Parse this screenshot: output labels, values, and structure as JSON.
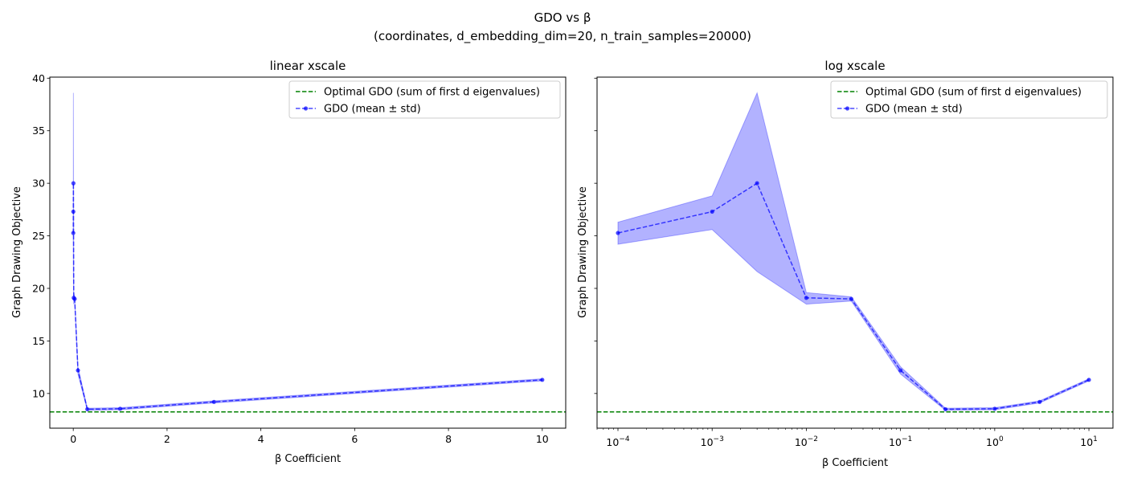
{
  "chart_data": [
    {
      "type": "line",
      "panel": "left",
      "suptitle": "GDO vs β",
      "subtitle": "(coordinates, d_embedding_dim=20, n_train_samples=20000)",
      "title": "linear xscale",
      "xlabel": "β Coefficient",
      "ylabel": "Graph Drawing Objective",
      "xscale": "linear",
      "xlim": [
        -0.5,
        10.5
      ],
      "ylim": [
        6.7,
        40.1
      ],
      "xticks": [
        0,
        2,
        4,
        6,
        8,
        10
      ],
      "xtick_labels": [
        "0",
        "2",
        "4",
        "6",
        "8",
        "10"
      ],
      "yticks": [
        10,
        15,
        20,
        25,
        30,
        35,
        40
      ],
      "ytick_labels": [
        "10",
        "15",
        "20",
        "25",
        "30",
        "35",
        "40"
      ],
      "grid": false,
      "legend_position": "top-right",
      "legend": [
        {
          "label": "Optimal GDO (sum of first d eigenvalues)",
          "style": "dashed",
          "color": "#008000"
        },
        {
          "label": "GDO (mean ± std)",
          "style": "dashed-marker",
          "color": "#0000ff"
        }
      ],
      "x": [
        0.0001,
        0.001,
        0.003,
        0.01,
        0.03,
        0.1,
        0.3,
        1,
        3,
        10
      ],
      "series": [
        {
          "name": "GDO (mean ± std)",
          "color": "#0000ff",
          "values": [
            25.27,
            27.3,
            30.0,
            19.1,
            19.0,
            12.2,
            8.5,
            8.55,
            9.2,
            11.3
          ],
          "std_upper": [
            26.3,
            28.8,
            38.6,
            19.6,
            19.2,
            12.55,
            8.6,
            8.65,
            9.3,
            11.4
          ],
          "std_lower": [
            24.2,
            25.6,
            21.6,
            18.5,
            18.8,
            11.85,
            8.4,
            8.45,
            9.1,
            11.2
          ]
        }
      ],
      "hline": {
        "name": "Optimal GDO (sum of first d eigenvalues)",
        "value": 8.25,
        "color": "#008000"
      }
    },
    {
      "type": "line",
      "panel": "right",
      "title": "log xscale",
      "xlabel": "β Coefficient",
      "ylabel": "Graph Drawing Objective",
      "xscale": "log",
      "xlim": [
        6e-05,
        18
      ],
      "ylim": [
        6.7,
        40.1
      ],
      "xticks": [
        0.0001,
        0.001,
        0.01,
        0.1,
        1,
        10
      ],
      "xtick_labels": [
        {
          "base": "10",
          "exp": "−4"
        },
        {
          "base": "10",
          "exp": "−3"
        },
        {
          "base": "10",
          "exp": "−2"
        },
        {
          "base": "10",
          "exp": "−1"
        },
        {
          "base": "10",
          "exp": "0"
        },
        {
          "base": "10",
          "exp": "1"
        }
      ],
      "yticks": [
        10,
        15,
        20,
        25,
        30,
        35,
        40
      ],
      "ytick_labels_shared": true,
      "grid": false,
      "legend_position": "top-right",
      "legend": [
        {
          "label": "Optimal GDO (sum of first d eigenvalues)",
          "style": "dashed",
          "color": "#008000"
        },
        {
          "label": "GDO (mean ± std)",
          "style": "dashed-marker",
          "color": "#0000ff"
        }
      ],
      "x": [
        0.0001,
        0.001,
        0.003,
        0.01,
        0.03,
        0.1,
        0.3,
        1,
        3,
        10
      ],
      "series": [
        {
          "name": "GDO (mean ± std)",
          "color": "#0000ff",
          "values": [
            25.27,
            27.3,
            30.0,
            19.1,
            19.0,
            12.2,
            8.5,
            8.55,
            9.2,
            11.3
          ],
          "std_upper": [
            26.3,
            28.8,
            38.6,
            19.6,
            19.2,
            12.55,
            8.6,
            8.65,
            9.3,
            11.4
          ],
          "std_lower": [
            24.2,
            25.6,
            21.6,
            18.5,
            18.8,
            11.85,
            8.4,
            8.45,
            9.1,
            11.2
          ]
        }
      ],
      "hline": {
        "name": "Optimal GDO (sum of first d eigenvalues)",
        "value": 8.25,
        "color": "#008000"
      }
    }
  ]
}
